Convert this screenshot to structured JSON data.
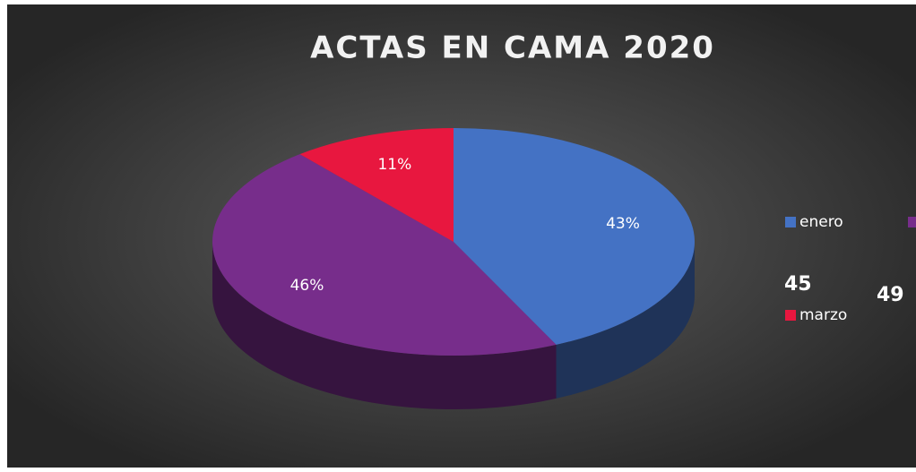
{
  "chart_data": {
    "type": "pie3d",
    "title": "ACTAS EN CAMA 2020",
    "categories": [
      "enero",
      null,
      "marzo"
    ],
    "values": [
      43,
      46,
      11
    ],
    "value_labels": [
      "43%",
      "46%",
      "11%"
    ],
    "colors": [
      "#4472c4",
      "#772d8b",
      "#e8173f"
    ],
    "annotations": [
      "45",
      "49"
    ]
  }
}
